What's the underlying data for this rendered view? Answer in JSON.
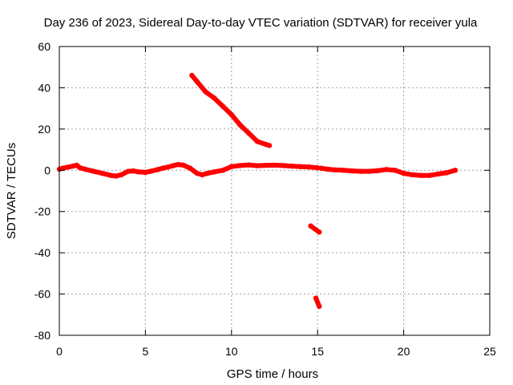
{
  "chart_data": {
    "type": "line",
    "title": "Day 236 of 2023, Sidereal Day-to-day VTEC variation (SDTVAR) for receiver yula",
    "xlabel": "GPS time / hours",
    "ylabel": "SDTVAR / TECUs",
    "xlim": [
      0,
      25
    ],
    "ylim": [
      -80,
      60
    ],
    "xticks": [
      0,
      5,
      10,
      15,
      20,
      25
    ],
    "yticks": [
      -80,
      -60,
      -40,
      -20,
      0,
      20,
      40,
      60
    ],
    "grid": true,
    "colors": {
      "series": "#ff0000",
      "grid": "#a0a0a0",
      "axis": "#000000"
    },
    "series": [
      {
        "name": "main-trace",
        "x": [
          0.0,
          0.2,
          0.5,
          0.8,
          1.0,
          1.2,
          1.5,
          2.0,
          2.5,
          3.0,
          3.3,
          3.6,
          4.0,
          4.3,
          4.6,
          5.0,
          5.3,
          5.7,
          6.0,
          6.3,
          6.6,
          6.9,
          7.2,
          7.6,
          8.0,
          8.3,
          8.6,
          9.0,
          9.5,
          10.0,
          10.5,
          11.0,
          11.5,
          12.0,
          12.5,
          13.0,
          13.5,
          14.0,
          14.5,
          15.0
        ],
        "y": [
          0.5,
          1.0,
          1.5,
          2.0,
          2.5,
          1.2,
          0.5,
          -0.5,
          -1.5,
          -2.5,
          -2.8,
          -2.2,
          -0.5,
          -0.3,
          -0.8,
          -1.0,
          -0.5,
          0.3,
          1.0,
          1.5,
          2.2,
          2.8,
          2.5,
          1.0,
          -1.5,
          -2.2,
          -1.5,
          -0.8,
          0.0,
          1.8,
          2.3,
          2.6,
          2.2,
          2.4,
          2.5,
          2.3,
          2.0,
          1.8,
          1.6,
          1.2
        ]
      },
      {
        "name": "main-trace-continued",
        "x": [
          15.2,
          15.6,
          16.0,
          16.5,
          17.0,
          17.5,
          18.0,
          18.5,
          19.0,
          19.5,
          20.0,
          20.5,
          21.0,
          21.5,
          22.0,
          22.5,
          23.0
        ],
        "y": [
          1.0,
          0.5,
          0.2,
          0.0,
          -0.3,
          -0.5,
          -0.5,
          -0.2,
          0.4,
          0.0,
          -1.5,
          -2.2,
          -2.5,
          -2.5,
          -1.8,
          -1.2,
          0.0
        ]
      },
      {
        "name": "descending-arc",
        "x": [
          7.7,
          8.0,
          8.5,
          9.0,
          9.5,
          10.0,
          10.5,
          11.0,
          11.5,
          12.0,
          12.2
        ],
        "y": [
          46,
          43,
          38,
          35,
          31,
          27,
          22,
          18,
          14,
          12.5,
          12
        ]
      },
      {
        "name": "short-segment-1",
        "x": [
          14.6,
          15.1
        ],
        "y": [
          -27,
          -30
        ]
      },
      {
        "name": "short-segment-2",
        "x": [
          14.9,
          15.1
        ],
        "y": [
          -62,
          -66
        ]
      }
    ]
  }
}
